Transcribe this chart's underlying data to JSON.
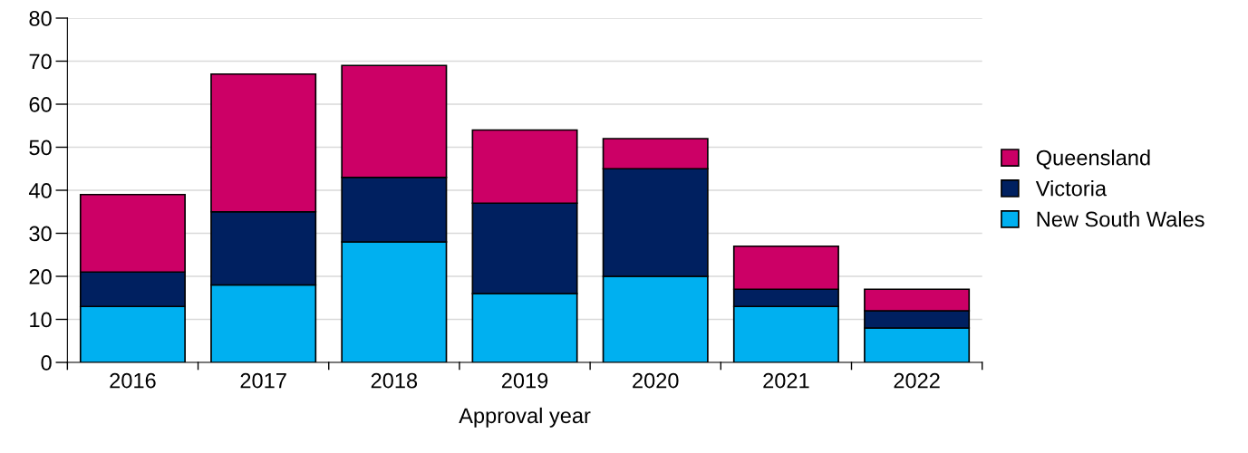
{
  "chart_data": {
    "type": "bar",
    "stacked": true,
    "xlabel": "Approval year",
    "categories": [
      "2016",
      "2017",
      "2018",
      "2019",
      "2020",
      "2021",
      "2022"
    ],
    "series": [
      {
        "name": "New South Wales",
        "color": "#00b0f0",
        "values": [
          13,
          18,
          28,
          16,
          20,
          13,
          8
        ]
      },
      {
        "name": "Victoria",
        "color": "#002060",
        "values": [
          8,
          17,
          15,
          21,
          25,
          4,
          4
        ]
      },
      {
        "name": "Queensland",
        "color": "#cc0066",
        "values": [
          18,
          32,
          26,
          17,
          7,
          10,
          5
        ]
      }
    ],
    "ylim": [
      0,
      80
    ],
    "yticks": [
      0,
      10,
      20,
      30,
      40,
      50,
      60,
      70,
      80
    ],
    "grid": "y",
    "legend": "right"
  }
}
